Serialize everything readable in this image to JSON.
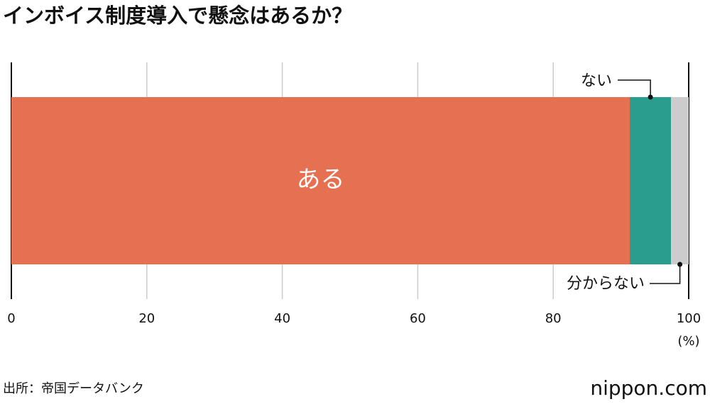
{
  "chart_data": {
    "type": "stacked_bar",
    "title": "インボイス制度導入で懸念はあるか？",
    "series": [
      {
        "name": "ある",
        "color": "#e57052",
        "values": [
          91.3
        ]
      },
      {
        "name": "ない",
        "color": "#2a9d8f",
        "values": [
          6.1
        ]
      },
      {
        "name": "分からない",
        "color": "#cccccc",
        "values": [
          2.6
        ]
      }
    ],
    "xlim": [
      0,
      100
    ],
    "xticks": [
      0,
      20,
      40,
      60,
      80,
      100
    ],
    "x_unit": "(%)",
    "grid": true,
    "source": "出所：帝国データバンク",
    "logo": "nippon.com"
  }
}
